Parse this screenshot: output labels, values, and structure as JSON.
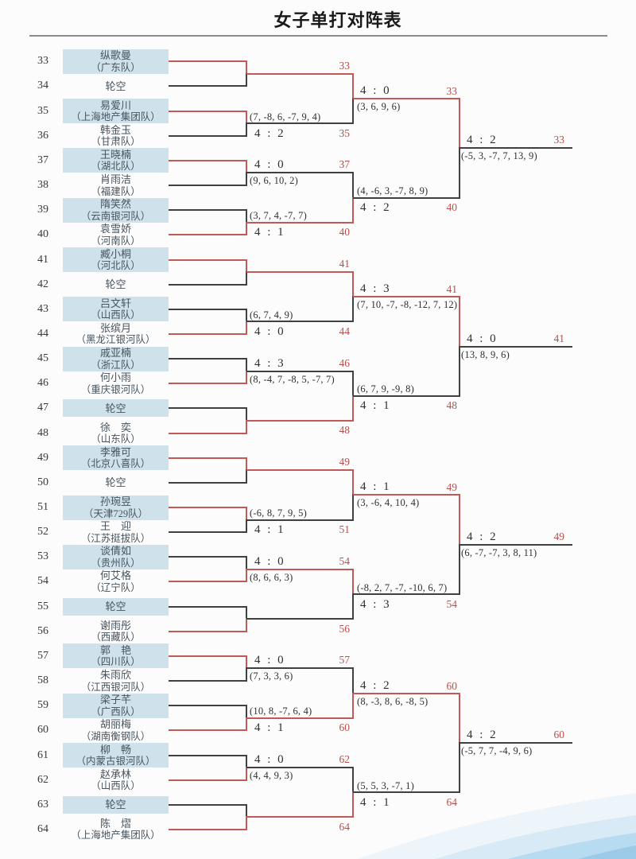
{
  "title": "女子单打对阵表",
  "colors": {
    "box": "#cfe2ec",
    "red_line": "#c05a57",
    "black_line": "#404040",
    "red_text": "#b5504d",
    "name_text": "#47545e",
    "rule": "#8a8a8a",
    "wave": [
      "#edf5fb",
      "#d7eaf6",
      "#b7dbf0",
      "#9bcbe9"
    ]
  },
  "players": [
    {
      "seed": "33",
      "name": "纵歌曼",
      "team": "（广东队）"
    },
    {
      "seed": "34",
      "name": "轮空",
      "team": ""
    },
    {
      "seed": "35",
      "name": "易爱川",
      "team": "（上海地产集团队）"
    },
    {
      "seed": "36",
      "name": "韩金玉",
      "team": "（甘肃队）"
    },
    {
      "seed": "37",
      "name": "王晓楠",
      "team": "（湖北队）"
    },
    {
      "seed": "38",
      "name": "肖雨洁",
      "team": "（福建队）"
    },
    {
      "seed": "39",
      "name": "隋笑然",
      "team": "（云南银河队）"
    },
    {
      "seed": "40",
      "name": "袁雪娇",
      "team": "（河南队）"
    },
    {
      "seed": "41",
      "name": "臧小桐",
      "team": "（河北队）"
    },
    {
      "seed": "42",
      "name": "轮空",
      "team": ""
    },
    {
      "seed": "43",
      "name": "吕文轩",
      "team": "（山西队）"
    },
    {
      "seed": "44",
      "name": "张缤月",
      "team": "（黑龙江银河队）"
    },
    {
      "seed": "45",
      "name": "戚亚楠",
      "team": "（浙江队）"
    },
    {
      "seed": "46",
      "name": "何小雨",
      "team": "（重庆银河队）"
    },
    {
      "seed": "47",
      "name": "轮空",
      "team": ""
    },
    {
      "seed": "48",
      "name": "徐　奕",
      "team": "（山东队）"
    },
    {
      "seed": "49",
      "name": "李雅可",
      "team": "（北京八喜队）"
    },
    {
      "seed": "50",
      "name": "轮空",
      "team": ""
    },
    {
      "seed": "51",
      "name": "孙琬昱",
      "team": "（天津729队）"
    },
    {
      "seed": "52",
      "name": "王　迎",
      "team": "（江苏挺拔队）"
    },
    {
      "seed": "53",
      "name": "谈倩如",
      "team": "（贵州队）"
    },
    {
      "seed": "54",
      "name": "何艾格",
      "team": "（辽宁队）"
    },
    {
      "seed": "55",
      "name": "轮空",
      "team": ""
    },
    {
      "seed": "56",
      "name": "谢雨彤",
      "team": "（西藏队）"
    },
    {
      "seed": "57",
      "name": "郭　艳",
      "team": "（四川队）"
    },
    {
      "seed": "58",
      "name": "朱雨欣",
      "team": "（江西银河队）"
    },
    {
      "seed": "59",
      "name": "梁子芊",
      "team": "（广西队）"
    },
    {
      "seed": "60",
      "name": "胡丽梅",
      "team": "（湖南衡钢队）"
    },
    {
      "seed": "61",
      "name": "柳　畅",
      "team": "（内蒙古银河队）"
    },
    {
      "seed": "62",
      "name": "赵承林",
      "team": "（山西队）"
    },
    {
      "seed": "63",
      "name": "轮空",
      "team": ""
    },
    {
      "seed": "64",
      "name": "陈　熠",
      "team": "（上海地产集团队）"
    }
  ],
  "round1": [
    {
      "winner": "33",
      "bye": true,
      "score": "",
      "games": ""
    },
    {
      "winner": "35",
      "score": "4 : 2",
      "games": "(7, -8, 6, -7, 9, 4)"
    },
    {
      "winner": "37",
      "score": "4 : 0",
      "games": "(9, 6, 10, 2)"
    },
    {
      "winner": "40",
      "score": "4 : 1",
      "games": "(3, 7, 4, -7, 7)"
    },
    {
      "winner": "41",
      "bye": true,
      "score": "",
      "games": ""
    },
    {
      "winner": "44",
      "score": "4 : 0",
      "games": "(6, 7, 4, 9)"
    },
    {
      "winner": "46",
      "score": "4 : 3",
      "games": "(8, -4, 7, -8, 5, -7, 7)"
    },
    {
      "winner": "48",
      "bye": true,
      "score": "",
      "games": ""
    },
    {
      "winner": "49",
      "bye": true,
      "score": "",
      "games": ""
    },
    {
      "winner": "51",
      "score": "4 : 1",
      "games": "(-6, 8, 7, 9, 5)"
    },
    {
      "winner": "54",
      "score": "4 : 0",
      "games": "(8, 6, 6, 3)"
    },
    {
      "winner": "56",
      "bye": true,
      "score": "",
      "games": ""
    },
    {
      "winner": "57",
      "score": "4 : 0",
      "games": "(7, 3, 3, 6)"
    },
    {
      "winner": "60",
      "score": "4 : 1",
      "games": "(10, 8, -7, 6, 4)"
    },
    {
      "winner": "62",
      "score": "4 : 0",
      "games": "(4, 4, 9, 3)"
    },
    {
      "winner": "64",
      "bye": true,
      "score": "",
      "games": ""
    }
  ],
  "round2": [
    {
      "winner": "33",
      "score": "4 : 0",
      "games": "(3, 6, 9, 6)"
    },
    {
      "winner": "40",
      "score": "4 : 2",
      "games": "(4, -6, 3, -7, 8, 9)"
    },
    {
      "winner": "41",
      "score": "4 : 3",
      "games": "(7, 10, -7, -8, -12, 7, 12)"
    },
    {
      "winner": "48",
      "score": "4 : 1",
      "games": "(6, 7, 9, -9, 8)"
    },
    {
      "winner": "49",
      "score": "4 : 1",
      "games": "(3, -6, 4, 10, 4)"
    },
    {
      "winner": "54",
      "score": "4 : 3",
      "games": "(-8, 2, 7, -7, -10, 6, 7)"
    },
    {
      "winner": "60",
      "score": "4 : 2",
      "games": "(8, -3, 8, 6, -8, 5)"
    },
    {
      "winner": "64",
      "score": "4 : 1",
      "games": "(5, 5, 3, -7, 1)"
    }
  ],
  "round3": [
    {
      "winner": "33",
      "score": "4 : 2",
      "games": "(-5, 3, -7, 7, 13, 9)"
    },
    {
      "winner": "41",
      "score": "4 : 0",
      "games": "(13, 8, 9, 6)"
    },
    {
      "winner": "49",
      "score": "4 : 2",
      "games": "(6, -7, -7, 3, 8, 11)"
    },
    {
      "winner": "60",
      "score": "4 : 2",
      "games": "(-5, 7, 7, -4, 9, 6)"
    }
  ]
}
